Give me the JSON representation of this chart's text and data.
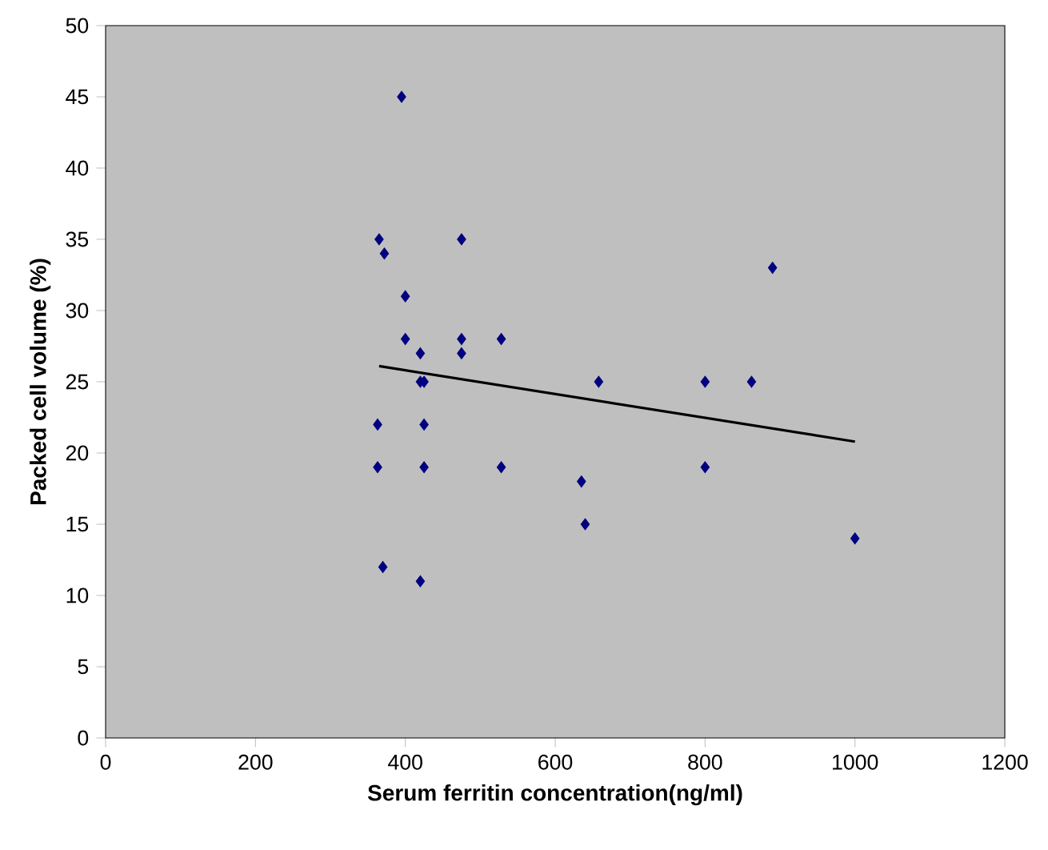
{
  "chart_data": {
    "type": "scatter",
    "xlabel": "Serum ferritin concentration(ng/ml)",
    "ylabel": "Packed cell volume (%)",
    "xlim": [
      0,
      1200
    ],
    "ylim": [
      0,
      50
    ],
    "xticks": [
      0,
      200,
      400,
      600,
      800,
      1000,
      1200
    ],
    "yticks": [
      0,
      5,
      10,
      15,
      20,
      25,
      30,
      35,
      40,
      45,
      50
    ],
    "grid": false,
    "series": [
      {
        "color": "#000080",
        "marker": "diamond",
        "x": [
          395,
          365,
          372,
          400,
          400,
          420,
          420,
          425,
          425,
          363,
          363,
          425,
          370,
          420,
          475,
          475,
          475,
          528,
          528,
          658,
          635,
          640,
          800,
          800,
          862,
          890,
          1000
        ],
        "values": [
          45,
          35,
          34,
          31,
          28,
          27,
          25,
          25,
          22,
          22,
          19,
          19,
          12,
          11,
          35,
          28,
          27,
          28,
          19,
          25,
          18,
          15,
          25,
          19,
          25,
          33,
          14
        ]
      },
      {
        "type": "line",
        "color": "#000000",
        "marker": "none",
        "x": [
          365,
          1000
        ],
        "values": [
          26.1,
          20.8
        ]
      }
    ]
  }
}
